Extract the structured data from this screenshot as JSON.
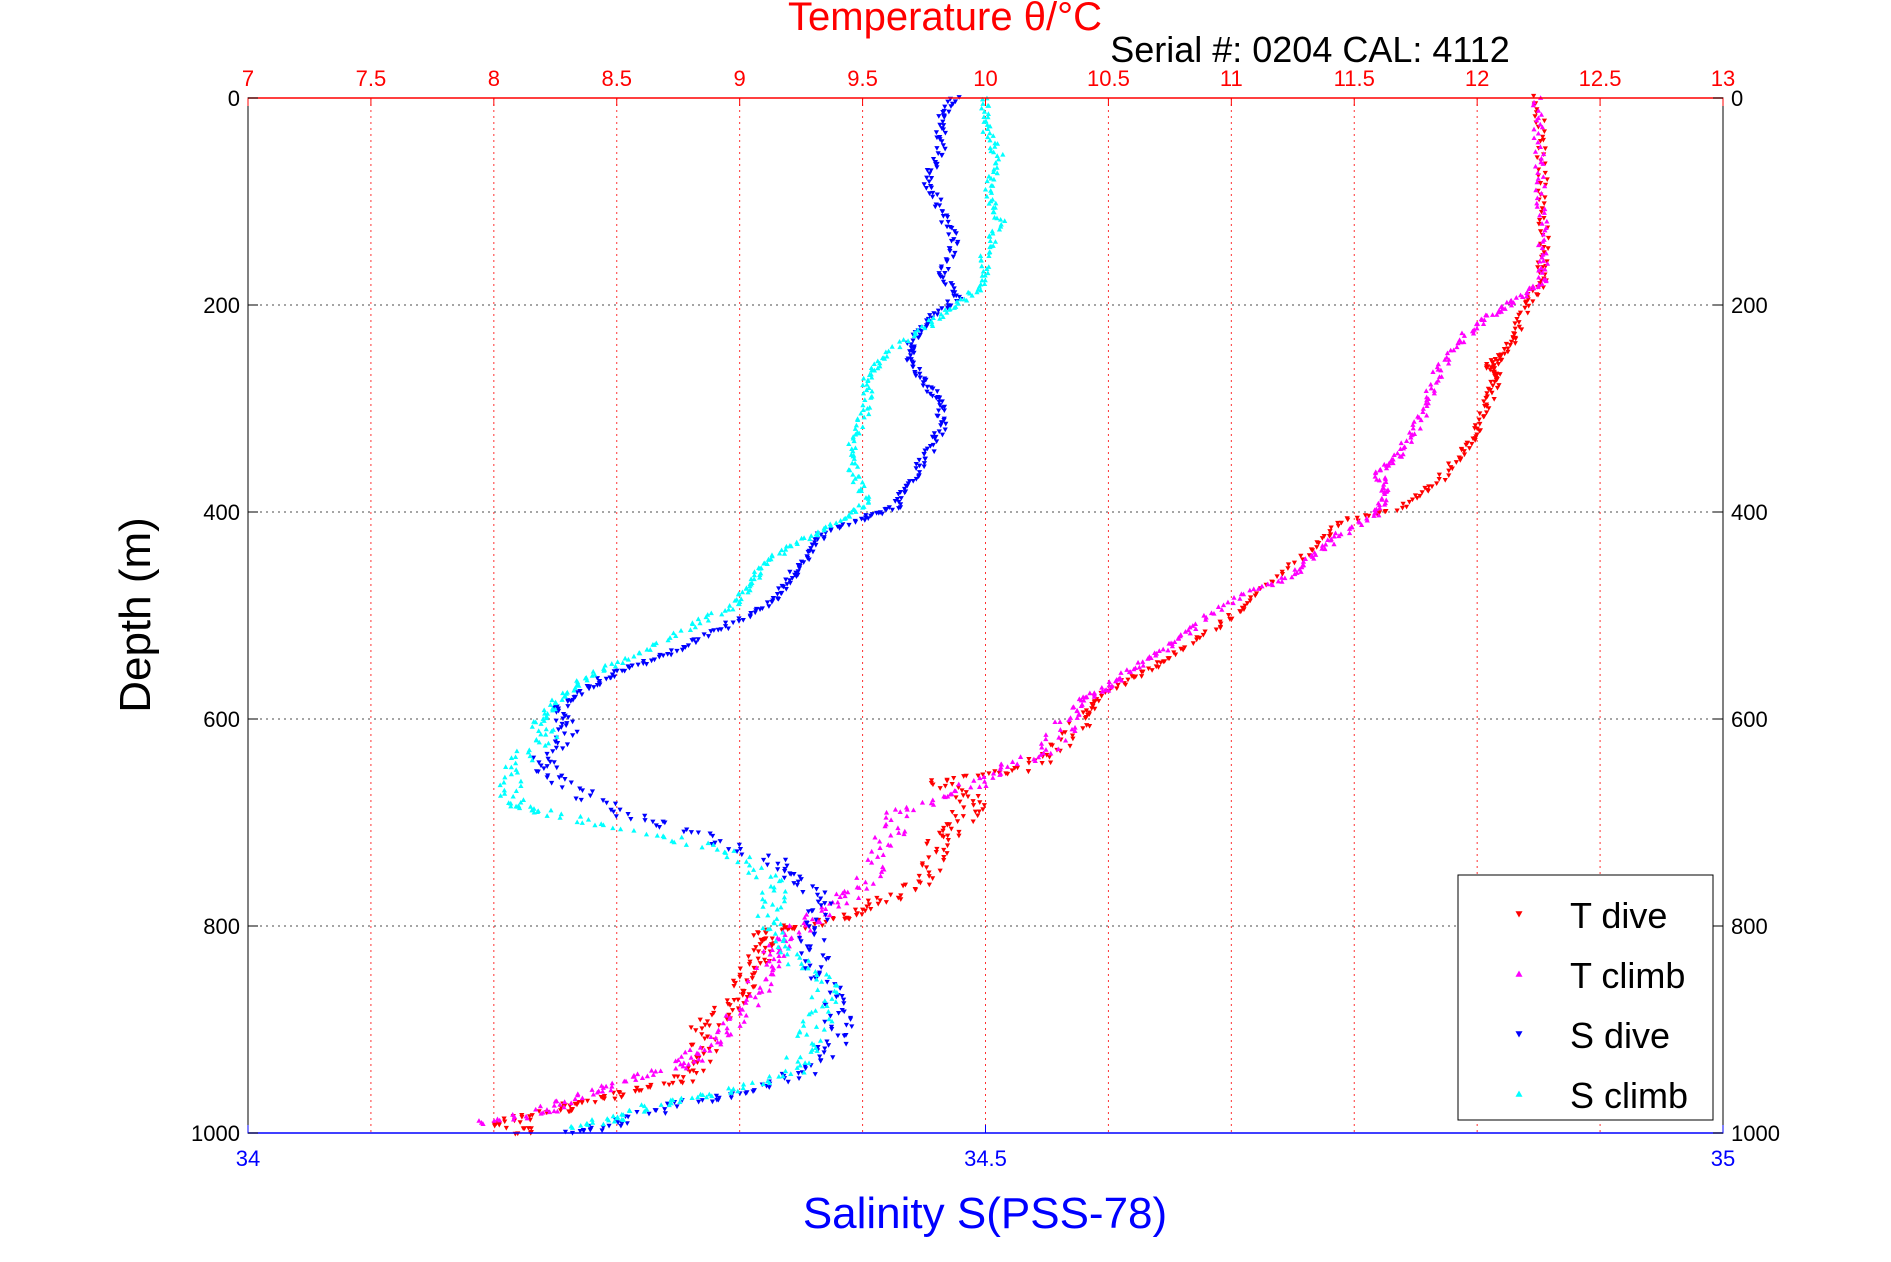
{
  "chart_data": {
    "type": "scatter",
    "title": "Temperature θ/°C",
    "subtitle": "Serial #: 0204  CAL: 4112",
    "ylabel": "Depth (m)",
    "xlabel_bottom": "Salinity S(PSS-78)",
    "xlabel_top": "Temperature θ/°C",
    "y_reversed": true,
    "ylim": [
      0,
      1000
    ],
    "y_ticks": [
      "0",
      "200",
      "400",
      "600",
      "800",
      "1000"
    ],
    "y_tick_values": [
      0,
      200,
      400,
      600,
      800,
      1000
    ],
    "x_top_lim": [
      7,
      13
    ],
    "x_top_ticks": [
      "7",
      "7.5",
      "8",
      "8.5",
      "9",
      "9.5",
      "10",
      "10.5",
      "11",
      "11.5",
      "12",
      "12.5",
      "13"
    ],
    "x_top_tick_values": [
      7,
      7.5,
      8,
      8.5,
      9,
      9.5,
      10,
      10.5,
      11,
      11.5,
      12,
      12.5,
      13
    ],
    "x_bottom_lim": [
      34,
      35
    ],
    "x_bottom_ticks": [
      "34",
      "34.5",
      "35"
    ],
    "x_bottom_tick_values": [
      34,
      34.5,
      35
    ],
    "grid": true,
    "legend_position": "bottom-right",
    "colors": {
      "temperature_axis": "#ff0000",
      "salinity_axis": "#0000ff",
      "grid_temperature": "#ff0000",
      "grid_depth": "#000000"
    },
    "series": [
      {
        "name": "T dive",
        "axis": "temperature",
        "color": "#ff0000",
        "marker": "down-triangle",
        "points": [
          [
            12.25,
            0
          ],
          [
            12.26,
            50
          ],
          [
            12.27,
            100
          ],
          [
            12.27,
            150
          ],
          [
            12.26,
            180
          ],
          [
            12.2,
            200
          ],
          [
            12.15,
            230
          ],
          [
            12.1,
            250
          ],
          [
            12.05,
            260
          ],
          [
            12.08,
            270
          ],
          [
            12.05,
            290
          ],
          [
            12.0,
            320
          ],
          [
            11.95,
            340
          ],
          [
            11.85,
            370
          ],
          [
            11.7,
            395
          ],
          [
            11.45,
            410
          ],
          [
            11.3,
            440
          ],
          [
            11.1,
            480
          ],
          [
            10.95,
            510
          ],
          [
            10.75,
            540
          ],
          [
            10.6,
            560
          ],
          [
            10.45,
            580
          ],
          [
            10.4,
            600
          ],
          [
            10.3,
            630
          ],
          [
            10.15,
            650
          ],
          [
            9.8,
            660
          ],
          [
            9.95,
            680
          ],
          [
            9.9,
            700
          ],
          [
            9.8,
            720
          ],
          [
            9.78,
            750
          ],
          [
            9.6,
            775
          ],
          [
            9.45,
            790
          ],
          [
            9.25,
            800
          ],
          [
            9.12,
            805
          ],
          [
            9.1,
            820
          ],
          [
            9.05,
            840
          ],
          [
            9.0,
            860
          ],
          [
            8.95,
            880
          ],
          [
            8.85,
            900
          ],
          [
            8.85,
            930
          ],
          [
            8.75,
            950
          ],
          [
            8.55,
            960
          ],
          [
            8.35,
            970
          ],
          [
            8.25,
            980
          ],
          [
            8.0,
            990
          ],
          [
            8.15,
            1000
          ]
        ]
      },
      {
        "name": "T climb",
        "axis": "temperature",
        "color": "#ff00ff",
        "marker": "up-triangle",
        "points": [
          [
            12.24,
            0
          ],
          [
            12.25,
            50
          ],
          [
            12.26,
            100
          ],
          [
            12.27,
            150
          ],
          [
            12.26,
            180
          ],
          [
            12.15,
            195
          ],
          [
            12.05,
            210
          ],
          [
            11.95,
            230
          ],
          [
            11.85,
            260
          ],
          [
            11.8,
            290
          ],
          [
            11.75,
            320
          ],
          [
            11.68,
            345
          ],
          [
            11.6,
            360
          ],
          [
            11.62,
            380
          ],
          [
            11.6,
            400
          ],
          [
            11.45,
            420
          ],
          [
            11.35,
            440
          ],
          [
            11.25,
            460
          ],
          [
            11.05,
            480
          ],
          [
            10.85,
            510
          ],
          [
            10.75,
            530
          ],
          [
            10.6,
            550
          ],
          [
            10.5,
            570
          ],
          [
            10.4,
            580
          ],
          [
            10.35,
            600
          ],
          [
            10.25,
            630
          ],
          [
            10.05,
            650
          ],
          [
            9.9,
            670
          ],
          [
            9.65,
            690
          ],
          [
            9.6,
            720
          ],
          [
            9.5,
            760
          ],
          [
            9.4,
            780
          ],
          [
            9.25,
            800
          ],
          [
            9.15,
            820
          ],
          [
            9.1,
            840
          ],
          [
            9.05,
            870
          ],
          [
            8.95,
            900
          ],
          [
            8.85,
            920
          ],
          [
            8.75,
            935
          ],
          [
            8.55,
            950
          ],
          [
            8.35,
            965
          ],
          [
            8.2,
            980
          ],
          [
            7.95,
            990
          ]
        ]
      },
      {
        "name": "S dive",
        "axis": "salinity",
        "color": "#0000ff",
        "marker": "down-triangle",
        "points": [
          [
            34.48,
            0
          ],
          [
            34.47,
            20
          ],
          [
            34.47,
            50
          ],
          [
            34.46,
            80
          ],
          [
            34.47,
            110
          ],
          [
            34.48,
            140
          ],
          [
            34.47,
            170
          ],
          [
            34.48,
            195
          ],
          [
            34.46,
            215
          ],
          [
            34.45,
            235
          ],
          [
            34.45,
            255
          ],
          [
            34.46,
            275
          ],
          [
            34.47,
            295
          ],
          [
            34.47,
            320
          ],
          [
            34.46,
            345
          ],
          [
            34.45,
            370
          ],
          [
            34.44,
            395
          ],
          [
            34.42,
            405
          ],
          [
            34.39,
            420
          ],
          [
            34.38,
            440
          ],
          [
            34.37,
            460
          ],
          [
            34.36,
            480
          ],
          [
            34.34,
            500
          ],
          [
            34.31,
            520
          ],
          [
            34.28,
            540
          ],
          [
            34.25,
            555
          ],
          [
            34.23,
            570
          ],
          [
            34.21,
            590
          ],
          [
            34.22,
            610
          ],
          [
            34.2,
            640
          ],
          [
            34.21,
            660
          ],
          [
            34.25,
            690
          ],
          [
            34.3,
            710
          ],
          [
            34.36,
            740
          ],
          [
            34.38,
            760
          ],
          [
            34.39,
            790
          ],
          [
            34.38,
            820
          ],
          [
            34.39,
            850
          ],
          [
            34.4,
            880
          ],
          [
            34.4,
            910
          ],
          [
            34.38,
            940
          ],
          [
            34.34,
            960
          ],
          [
            34.3,
            970
          ],
          [
            34.25,
            990
          ],
          [
            34.22,
            1000
          ]
        ]
      },
      {
        "name": "S climb",
        "axis": "salinity",
        "color": "#00ffff",
        "marker": "up-triangle",
        "points": [
          [
            34.5,
            0
          ],
          [
            34.5,
            30
          ],
          [
            34.51,
            60
          ],
          [
            34.5,
            90
          ],
          [
            34.51,
            120
          ],
          [
            34.5,
            150
          ],
          [
            34.5,
            180
          ],
          [
            34.48,
            200
          ],
          [
            34.46,
            220
          ],
          [
            34.43,
            250
          ],
          [
            34.42,
            270
          ],
          [
            34.42,
            300
          ],
          [
            34.41,
            330
          ],
          [
            34.41,
            360
          ],
          [
            34.42,
            390
          ],
          [
            34.4,
            410
          ],
          [
            34.37,
            430
          ],
          [
            34.35,
            450
          ],
          [
            34.34,
            470
          ],
          [
            34.33,
            490
          ],
          [
            34.3,
            510
          ],
          [
            34.26,
            540
          ],
          [
            34.23,
            560
          ],
          [
            34.21,
            580
          ],
          [
            34.2,
            600
          ],
          [
            34.2,
            620
          ],
          [
            34.18,
            650
          ],
          [
            34.18,
            680
          ],
          [
            34.2,
            690
          ],
          [
            34.27,
            710
          ],
          [
            34.33,
            730
          ],
          [
            34.36,
            760
          ],
          [
            34.35,
            790
          ],
          [
            34.36,
            820
          ],
          [
            34.39,
            850
          ],
          [
            34.39,
            880
          ],
          [
            34.38,
            910
          ],
          [
            34.37,
            940
          ],
          [
            34.33,
            960
          ],
          [
            34.28,
            970
          ],
          [
            34.25,
            985
          ],
          [
            34.22,
            995
          ]
        ]
      }
    ]
  }
}
